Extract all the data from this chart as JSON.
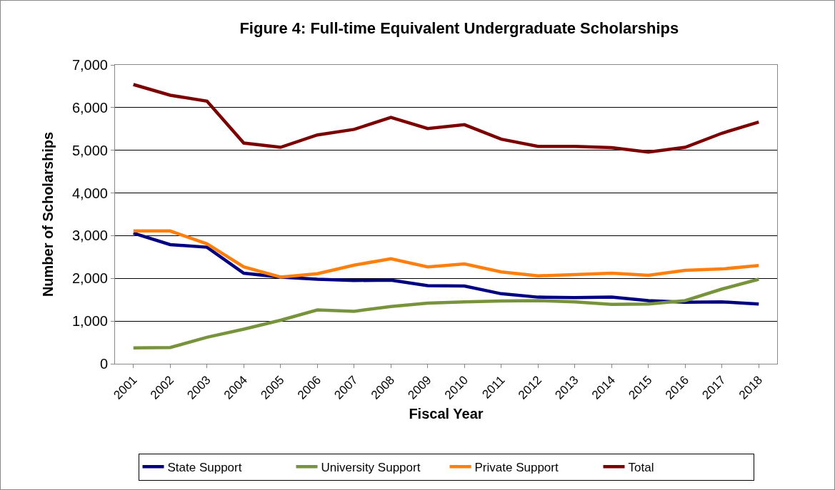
{
  "chart_data": {
    "type": "line",
    "title": "Figure 4: Full-time Equivalent Undergraduate Scholarships",
    "xlabel": "Fiscal Year",
    "ylabel": "Number of Scholarships",
    "categories": [
      "2001",
      "2002",
      "2003",
      "2004",
      "2005",
      "2006",
      "2007",
      "2008",
      "2009",
      "2010",
      "2011",
      "2012",
      "2013",
      "2014",
      "2015",
      "2016",
      "2017",
      "2018"
    ],
    "series": [
      {
        "name": "State Support",
        "color": "#000080",
        "values": [
          3060,
          2790,
          2730,
          2120,
          2030,
          1980,
          1950,
          1960,
          1830,
          1820,
          1640,
          1560,
          1550,
          1560,
          1480,
          1440,
          1450,
          1400
        ]
      },
      {
        "name": "University Support",
        "color": "#77933c",
        "values": [
          370,
          380,
          620,
          810,
          1020,
          1260,
          1230,
          1340,
          1420,
          1450,
          1470,
          1480,
          1450,
          1390,
          1400,
          1480,
          1750,
          1980
        ]
      },
      {
        "name": "Private Support",
        "color": "#ff7f0e",
        "values": [
          3110,
          3110,
          2810,
          2270,
          2030,
          2110,
          2310,
          2460,
          2270,
          2340,
          2150,
          2060,
          2090,
          2120,
          2070,
          2190,
          2220,
          2300
        ]
      },
      {
        "name": "Total",
        "color": "#7b0000",
        "values": [
          6540,
          6290,
          6150,
          5170,
          5070,
          5360,
          5490,
          5770,
          5510,
          5600,
          5260,
          5090,
          5090,
          5060,
          4960,
          5070,
          5400,
          5660
        ]
      }
    ],
    "ylim": [
      0,
      7000
    ],
    "yticks": [
      {
        "value": 0,
        "label": "0"
      },
      {
        "value": 1000,
        "label": "1,000"
      },
      {
        "value": 2000,
        "label": "2,000"
      },
      {
        "value": 3000,
        "label": "3,000"
      },
      {
        "value": 4000,
        "label": "4,000"
      },
      {
        "value": 5000,
        "label": "5,000"
      },
      {
        "value": 6000,
        "label": "6,000"
      },
      {
        "value": 7000,
        "label": "7,000"
      }
    ],
    "grid": "y",
    "legend": "bottom",
    "marker": "none",
    "line_style": "solid"
  }
}
